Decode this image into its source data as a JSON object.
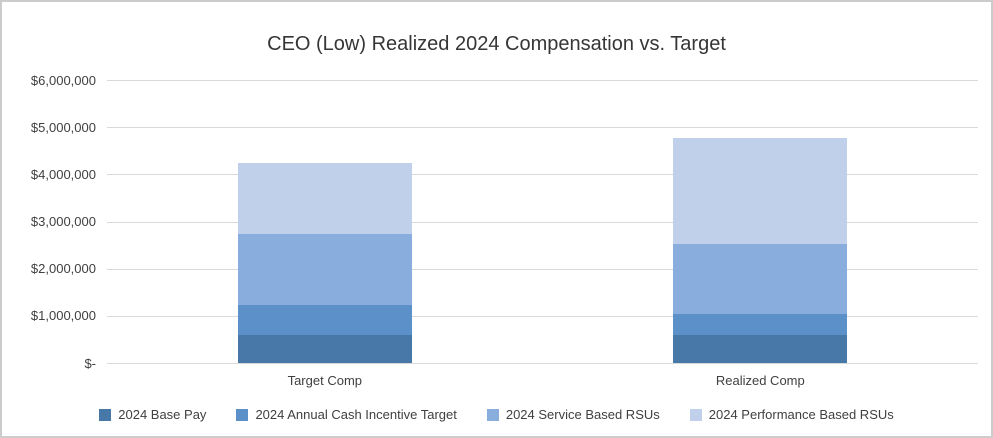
{
  "chart_data": {
    "type": "bar",
    "stacked": true,
    "title": "CEO (Low) Realized 2024 Compensation vs. Target",
    "categories": [
      "Target Comp",
      "Realized Comp"
    ],
    "series": [
      {
        "name": "2024 Base Pay",
        "color": "#4878a8",
        "values": [
          600000,
          600000
        ]
      },
      {
        "name": "2024 Annual Cash Incentive Target",
        "color": "#5b91c8",
        "values": [
          630000,
          440000
        ]
      },
      {
        "name": "2024 Service Based RSUs",
        "color": "#89aede",
        "values": [
          1500000,
          1480000
        ]
      },
      {
        "name": "2024 Performance Based RSUs",
        "color": "#c0d0eb",
        "values": [
          1500000,
          2240000
        ]
      }
    ],
    "totals": {
      "target_comp": 4230000,
      "realized_comp": 4760000
    },
    "xlabel": "",
    "ylabel": "",
    "ylim": [
      0,
      6000000
    ],
    "y_ticks": [
      {
        "value": 0,
        "label": "$-"
      },
      {
        "value": 1000000,
        "label": "$1,000,000"
      },
      {
        "value": 2000000,
        "label": "$2,000,000"
      },
      {
        "value": 3000000,
        "label": "$3,000,000"
      },
      {
        "value": 4000000,
        "label": "$4,000,000"
      },
      {
        "value": 5000000,
        "label": "$5,000,000"
      },
      {
        "value": 6000000,
        "label": "$6,000,000"
      }
    ],
    "grid": true,
    "gridline_color": "#d9d9d9",
    "legend_position": "bottom",
    "text_color": "#404040",
    "background_color": "#ffffff",
    "border_color": "#cccccc"
  }
}
